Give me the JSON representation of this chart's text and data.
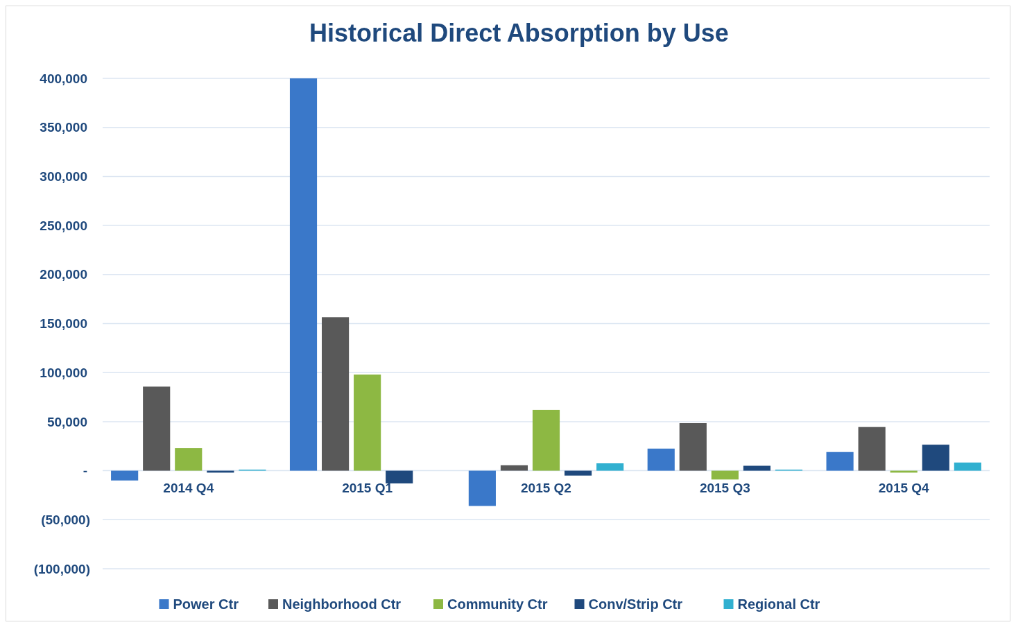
{
  "chart_data": {
    "type": "bar",
    "title": "Historical Direct Absorption by Use",
    "categories": [
      "2014 Q4",
      "2015 Q1",
      "2015 Q2",
      "2015 Q3",
      "2015 Q4"
    ],
    "series": [
      {
        "name": "Power Ctr",
        "color": "#3a78c9",
        "values": [
          -10000,
          400000,
          -36000,
          22500,
          19000
        ]
      },
      {
        "name": "Neighborhood Ctr",
        "color": "#595959",
        "values": [
          85700,
          156500,
          5500,
          48500,
          44500
        ]
      },
      {
        "name": "Community Ctr",
        "color": "#8db843",
        "values": [
          23000,
          98000,
          62000,
          -9000,
          -2000
        ]
      },
      {
        "name": "Conv/Strip Ctr",
        "color": "#1f497d",
        "values": [
          -2000,
          -13000,
          -5000,
          5000,
          26500
        ]
      },
      {
        "name": "Regional Ctr",
        "color": "#31b0d0",
        "values": [
          1000,
          0,
          7500,
          1000,
          8300
        ]
      }
    ],
    "ylim": [
      -100000,
      400000
    ],
    "yticks": [
      {
        "value": -100000,
        "label": "(100,000)"
      },
      {
        "value": -50000,
        "label": "(50,000)"
      },
      {
        "value": 0,
        "label": "-"
      },
      {
        "value": 50000,
        "label": "50,000"
      },
      {
        "value": 100000,
        "label": "100,000"
      },
      {
        "value": 150000,
        "label": "150,000"
      },
      {
        "value": 200000,
        "label": "200,000"
      },
      {
        "value": 250000,
        "label": "250,000"
      },
      {
        "value": 300000,
        "label": "300,000"
      },
      {
        "value": 350000,
        "label": "350,000"
      },
      {
        "value": 400000,
        "label": "400,000"
      }
    ],
    "grid": "y",
    "legend": "bottom"
  }
}
